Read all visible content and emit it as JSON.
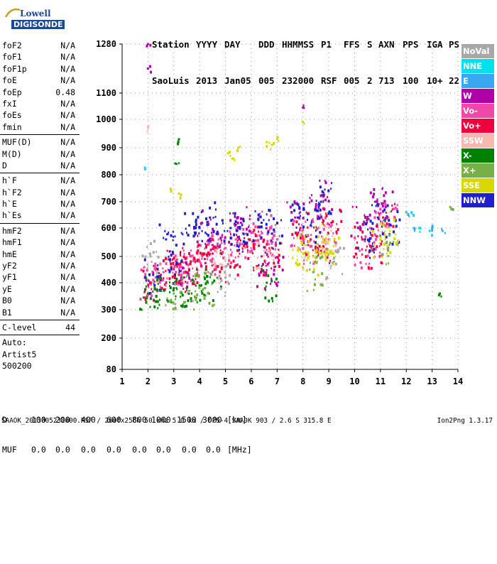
{
  "logo": {
    "line1": "Lowell",
    "line2": "DIGISONDE"
  },
  "header": {
    "labels": [
      "Station",
      "YYYY",
      "DAY",
      "DDD",
      "HHMMSS",
      "P1",
      "FFS",
      "S",
      "AXN",
      "PPS",
      "IGA",
      "PS"
    ],
    "values": [
      "SaoLuis",
      "2013",
      "Jan05",
      "005",
      "232000",
      "RSF",
      "005",
      "2",
      "713",
      "100",
      "10+",
      "22"
    ]
  },
  "params": {
    "group1": [
      {
        "name": "foF2",
        "value": "N/A"
      },
      {
        "name": "foF1",
        "value": "N/A"
      },
      {
        "name": "foF1p",
        "value": "N/A"
      },
      {
        "name": "foE",
        "value": "N/A"
      },
      {
        "name": "foEp",
        "value": "0.48"
      },
      {
        "name": "fxI",
        "value": "N/A"
      },
      {
        "name": "foEs",
        "value": "N/A"
      },
      {
        "name": "fmin",
        "value": "N/A"
      }
    ],
    "group2": [
      {
        "name": "MUF(D)",
        "value": "N/A"
      },
      {
        "name": "M(D)",
        "value": "N/A"
      },
      {
        "name": "D",
        "value": "N/A"
      }
    ],
    "group3": [
      {
        "name": "h`F",
        "value": "N/A"
      },
      {
        "name": "h`F2",
        "value": "N/A"
      },
      {
        "name": "h`E",
        "value": "N/A"
      },
      {
        "name": "h`Es",
        "value": "N/A"
      }
    ],
    "group4": [
      {
        "name": "hmF2",
        "value": "N/A"
      },
      {
        "name": "hmF1",
        "value": "N/A"
      },
      {
        "name": "hmE",
        "value": "N/A"
      },
      {
        "name": "yF2",
        "value": "N/A"
      },
      {
        "name": "yF1",
        "value": "N/A"
      },
      {
        "name": "yE",
        "value": "N/A"
      },
      {
        "name": "B0",
        "value": "N/A"
      },
      {
        "name": "B1",
        "value": "N/A"
      }
    ],
    "clevel": {
      "name": "C-level",
      "value": "44"
    },
    "auto": [
      "Auto:",
      "Artist5",
      "500200"
    ]
  },
  "legend": [
    {
      "label": "NoVal",
      "color": "#a8a8a8"
    },
    {
      "label": "NNE",
      "color": "#00e0f0"
    },
    {
      "label": "E",
      "color": "#3aa8f0"
    },
    {
      "label": "W",
      "color": "#b000a8"
    },
    {
      "label": "Vo-",
      "color": "#f048a8"
    },
    {
      "label": "Vo+",
      "color": "#f0003c"
    },
    {
      "label": "SSW",
      "color": "#f8b8b0"
    },
    {
      "label": "X-",
      "color": "#008000"
    },
    {
      "label": "X+",
      "color": "#78b048"
    },
    {
      "label": "SSE",
      "color": "#d8d800"
    },
    {
      "label": "NNW",
      "color": "#2020c8"
    }
  ],
  "footer": {
    "d_label": "D",
    "d_values": [
      "100",
      "200",
      "400",
      "600",
      "800",
      "1000",
      "1500",
      "3000",
      "[km]"
    ],
    "muf_label": "MUF",
    "muf_values": [
      "0.0",
      "0.0",
      "0.0",
      "0.0",
      "0.0",
      "0.0",
      "0.0",
      "0.0",
      "[MHz]"
    ],
    "info": "SAAOK_2013005232000.RSF / 260fx256h 50 kHz 5.0 km / DPS-4 SAA0K 903 / 2.6 S 315.8 E",
    "version": "Ion2Png 1.3.17"
  },
  "chart_data": {
    "type": "scatter",
    "title": "",
    "xlabel": "",
    "ylabel": "",
    "xlim": [
      1,
      14
    ],
    "ylim": [
      80,
      1280
    ],
    "x_ticks": [
      1,
      2,
      3,
      4,
      5,
      6,
      7,
      8,
      9,
      10,
      11,
      12,
      13,
      14
    ],
    "y_ticks": [
      80,
      200,
      300,
      400,
      500,
      600,
      700,
      800,
      900,
      1000,
      1100,
      1280
    ],
    "y_scale": "nonlinear (ionogram virtual height)",
    "grid": true,
    "legend_position": "right",
    "series": [
      {
        "name": "Vo-",
        "color": "#f048a8",
        "x": [
          2.0,
          2.3,
          2.6,
          3.0,
          3.3,
          3.6,
          4.0,
          4.3,
          4.6,
          5.0,
          5.4,
          5.8,
          6.3,
          6.6,
          7.0,
          7.8,
          8.2,
          8.6,
          9.0,
          10.2,
          10.6,
          11.0,
          11.3
        ],
        "y": [
          410,
          420,
          440,
          450,
          460,
          470,
          480,
          500,
          520,
          530,
          560,
          580,
          540,
          600,
          560,
          580,
          540,
          600,
          560,
          520,
          600,
          560,
          640
        ]
      },
      {
        "name": "Vo+",
        "color": "#f0003c",
        "x": [
          2.1,
          2.5,
          2.9,
          3.2,
          3.5,
          3.9,
          4.2,
          4.5,
          5.1,
          5.5,
          5.9,
          6.4,
          6.8,
          7.9,
          8.3,
          8.7,
          9.1,
          10.3,
          10.7,
          11.1
        ],
        "y": [
          400,
          430,
          460,
          430,
          470,
          450,
          490,
          510,
          470,
          520,
          560,
          500,
          530,
          600,
          560,
          520,
          620,
          560,
          520,
          640
        ]
      },
      {
        "name": "W",
        "color": "#b000a8",
        "x": [
          2.0,
          2.0,
          3.4,
          4.1,
          4.5,
          5.2,
          5.6,
          6.5,
          6.9,
          7.7,
          8.0,
          8.5,
          8.8,
          10.1,
          10.8,
          11.2
        ],
        "y": [
          1280,
          1190,
          420,
          620,
          540,
          600,
          620,
          440,
          460,
          640,
          1045,
          680,
          720,
          620,
          700,
          680
        ]
      },
      {
        "name": "NNW",
        "color": "#2020c8",
        "x": [
          2.2,
          2.7,
          3.1,
          3.6,
          4.0,
          4.4,
          5.2,
          5.7,
          6.4,
          6.8,
          7.8,
          8.3,
          8.7,
          10.4,
          10.9,
          11.4
        ],
        "y": [
          430,
          560,
          470,
          610,
          600,
          640,
          600,
          580,
          620,
          580,
          640,
          610,
          700,
          560,
          640,
          610
        ]
      },
      {
        "name": "SSE",
        "color": "#d8d800",
        "x": [
          5.1,
          5.3,
          5.5,
          6.6,
          6.8,
          7.0,
          7.8,
          8.1,
          8.4,
          8.8,
          9.1,
          11.0,
          11.3,
          3.2,
          2.9,
          8.0
        ],
        "y": [
          880,
          860,
          900,
          920,
          910,
          930,
          520,
          540,
          500,
          560,
          520,
          560,
          600,
          730,
          740,
          990
        ]
      },
      {
        "name": "X-",
        "color": "#008000",
        "x": [
          2.0,
          2.5,
          3.0,
          3.5,
          4.0,
          4.5,
          3.1,
          3.2,
          13.3,
          6.6
        ],
        "y": [
          360,
          370,
          380,
          380,
          390,
          400,
          840,
          930,
          360,
          400
        ]
      },
      {
        "name": "X+",
        "color": "#78b048",
        "x": [
          3.0,
          3.6,
          4.2,
          8.4,
          13.7,
          11.3
        ],
        "y": [
          360,
          370,
          380,
          440,
          680,
          520
        ]
      },
      {
        "name": "NNE",
        "color": "#00e0f0",
        "x": [
          1.9,
          12.2,
          12.5,
          12.9
        ],
        "y": [
          820,
          660,
          600,
          590
        ]
      },
      {
        "name": "E",
        "color": "#3aa8f0",
        "x": [
          12.0,
          12.3,
          13.0,
          13.4
        ],
        "y": [
          660,
          600,
          600,
          590
        ]
      },
      {
        "name": "SSW",
        "color": "#f8b8b0",
        "x": [
          2.0,
          4.8,
          6.5,
          8.9
        ],
        "y": [
          970,
          470,
          520,
          560
        ]
      },
      {
        "name": "NoVal",
        "color": "#a8a8a8",
        "x": [
          2.1,
          5.0,
          9.2
        ],
        "y": [
          500,
          420,
          480
        ]
      }
    ]
  }
}
